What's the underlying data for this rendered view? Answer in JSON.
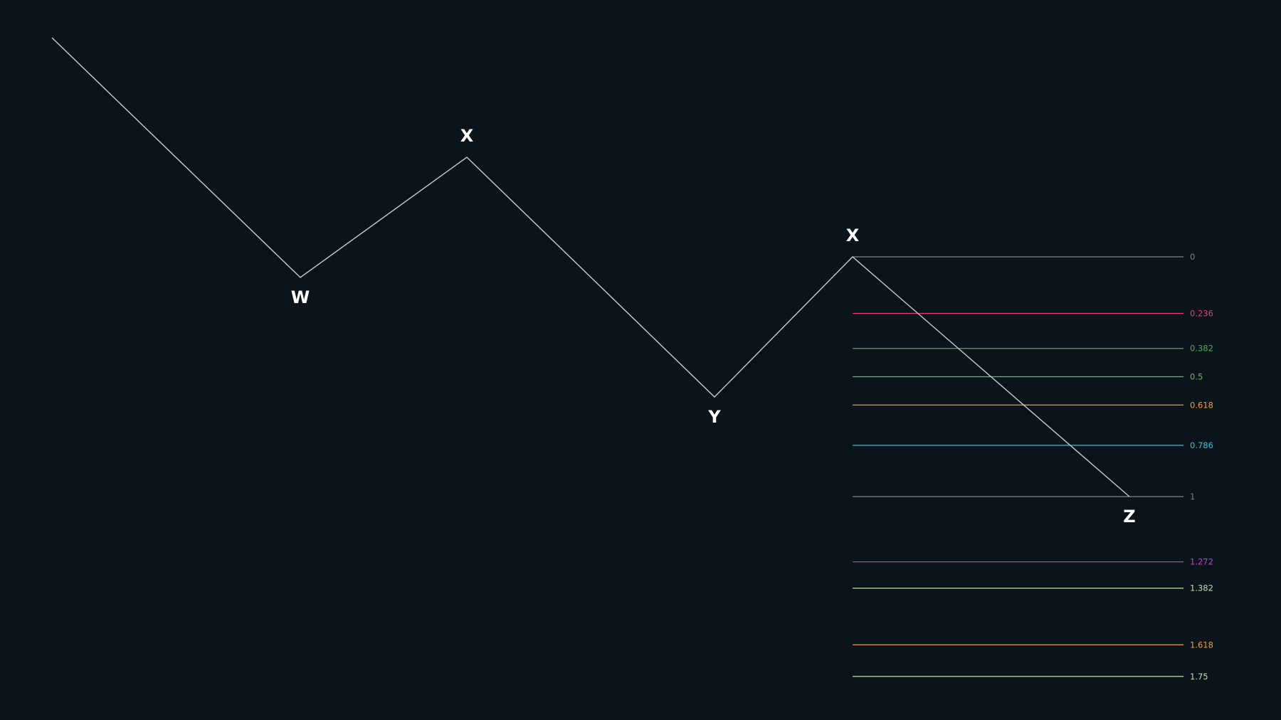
{
  "diagram": {
    "background_color": "#0b131b",
    "line_color": "#c8cdd2",
    "wave_points": [
      {
        "label": ""
      },
      {
        "label": "W"
      },
      {
        "label": "X"
      },
      {
        "label": "Y"
      },
      {
        "label": "X"
      },
      {
        "label": "Z"
      }
    ],
    "fib_levels": [
      {
        "label": "0",
        "color": "#7d848c"
      },
      {
        "label": "0.236",
        "color": "#e0407a"
      },
      {
        "label": "0.382",
        "color": "#4caf50"
      },
      {
        "label": "0.5",
        "color": "#66bb6a"
      },
      {
        "label": "0.618",
        "color": "#f5a030"
      },
      {
        "label": "0.786",
        "color": "#26c6da"
      },
      {
        "label": "1",
        "color": "#7d848c"
      },
      {
        "label": "1.272",
        "color": "#c040d0"
      },
      {
        "label": "1.382",
        "color": "#b8e0b0"
      },
      {
        "label": "1.618",
        "color": "#f5a030"
      },
      {
        "label": "1.75",
        "color": "#b8e0b0"
      }
    ]
  }
}
